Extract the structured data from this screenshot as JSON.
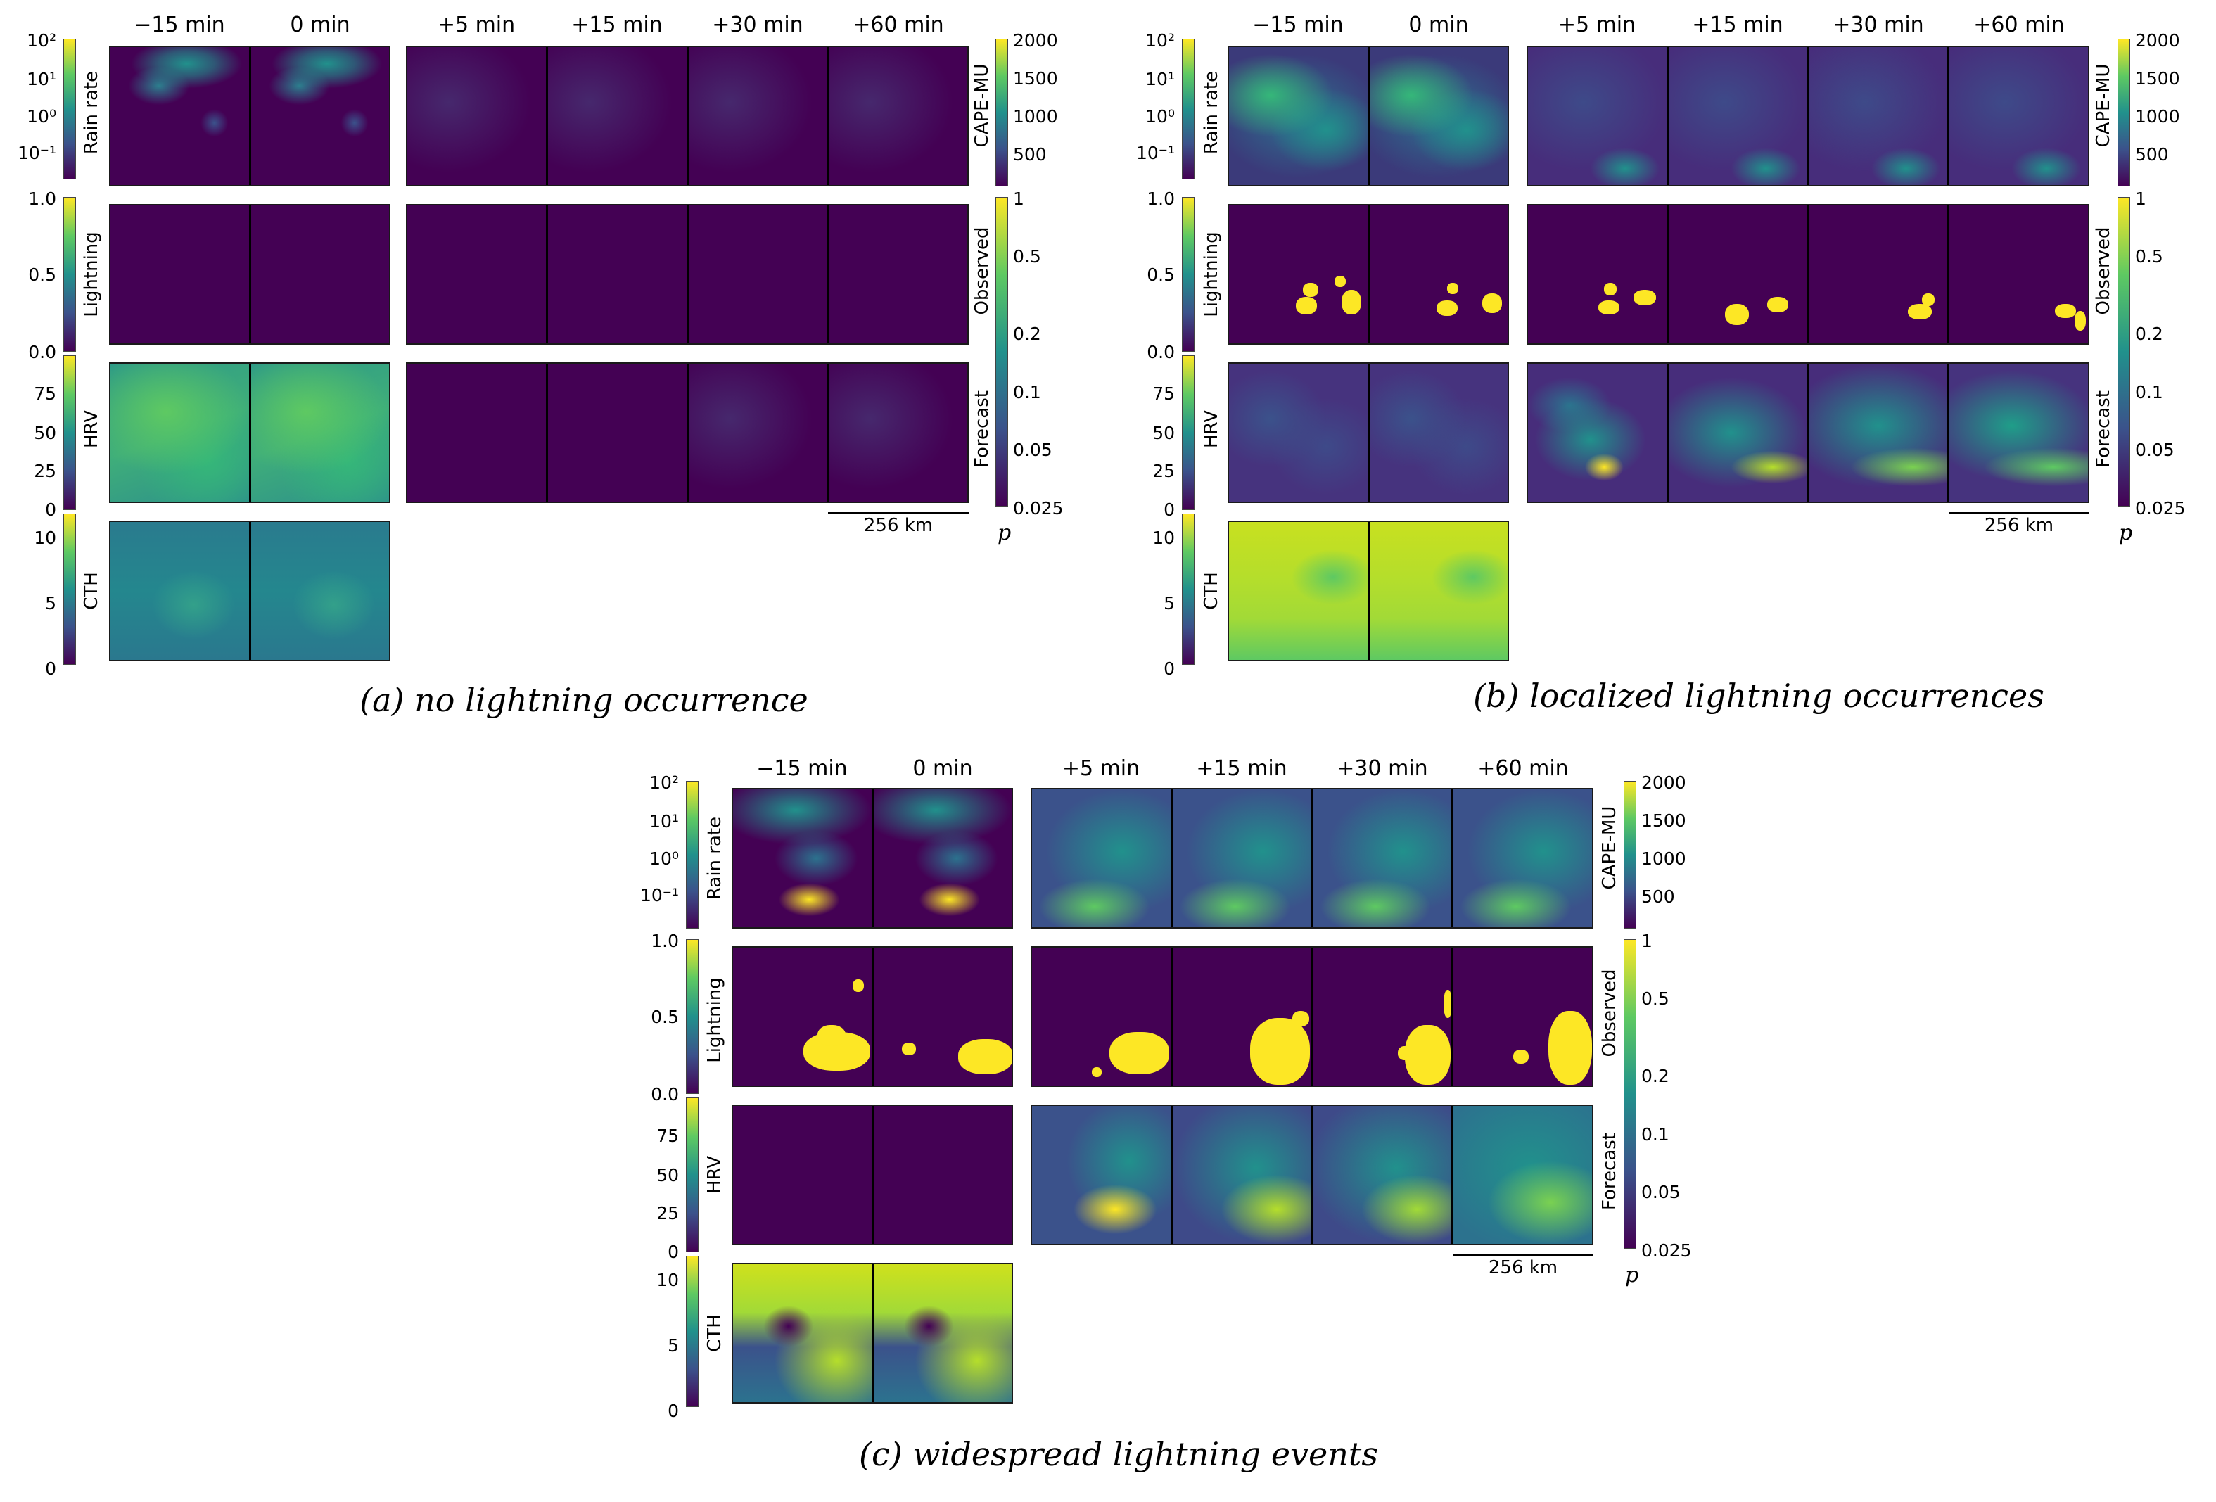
{
  "figure": {
    "col_titles": [
      "−15 min",
      "0 min",
      "+5 min",
      "+15 min",
      "+30 min",
      "+60 min"
    ],
    "row_labels": [
      "Rain rate",
      "Lightning",
      "HRV",
      "CTH"
    ],
    "right_labels": [
      "CAPE-MU",
      "Observed",
      "Forecast"
    ],
    "p_label": "p",
    "scale_bar_label": "256 km",
    "rain_ticks": [
      "10²",
      "10¹",
      "10⁰",
      "10⁻¹"
    ],
    "lightning_ticks": [
      "1.0",
      "0.5",
      "0.0"
    ],
    "hrv_ticks": [
      "75",
      "50",
      "25",
      "0"
    ],
    "cth_ticks": [
      "10",
      "5",
      "0"
    ],
    "cape_ticks": [
      "2000",
      "1500",
      "1000",
      "500"
    ],
    "prob_ticks": [
      "1",
      "0.5",
      "0.2",
      "0.1",
      "0.05",
      "0.025"
    ]
  },
  "captions": {
    "a": "(a) no lightning occurrence",
    "b": "(b) localized lightning occurrences",
    "c": "(c) widespread lightning events"
  },
  "colors": {
    "viridis_dark": "#440154",
    "viridis_yellow": "#fde725"
  }
}
